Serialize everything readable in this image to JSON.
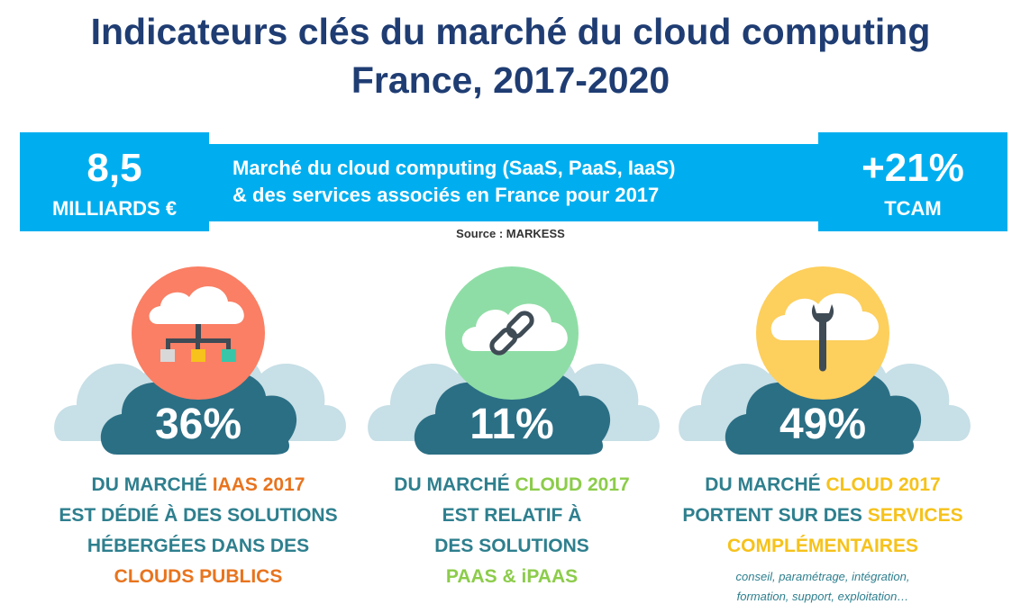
{
  "title": {
    "line1": "Indicateurs clés du marché du cloud computing",
    "line2": "France, 2017-2020"
  },
  "banner": {
    "left_value": "8,5",
    "left_unit": "MILLIARDS €",
    "center_line1": "Marché du cloud computing (SaaS, PaaS, IaaS)",
    "center_line2": "& des services associés en France pour 2017",
    "right_value": "+21%",
    "right_unit": "TCAM"
  },
  "source": "Source : MARKESS",
  "colors": {
    "navy": "#1f3d73",
    "banner_blue": "#00aeef",
    "teal": "#2e7f8e",
    "cloud_light": "#c7dfe6",
    "cloud_dark": "#2b6f85",
    "orange": "#e8741e",
    "green": "#8ccc4a",
    "yellow": "#f6c21b"
  },
  "cards": [
    {
      "icon": "network-cloud-icon",
      "percent": "36%",
      "line1_a": "DU MARCHÉ ",
      "line1_b": "IAAS 2017",
      "line2": "EST DÉDIÉ À DES SOLUTIONS",
      "line3": "HÉBERGÉES DANS DES",
      "line4": "CLOUDS PUBLICS"
    },
    {
      "icon": "link-cloud-icon",
      "percent": "11%",
      "line1_a": "DU MARCHÉ ",
      "line1_b": "CLOUD 2017",
      "line2": "EST RELATIF À",
      "line3": "DES SOLUTIONS",
      "line4": "PAAS & iPAAS"
    },
    {
      "icon": "wrench-cloud-icon",
      "percent": "49%",
      "line1_a": "DU MARCHÉ ",
      "line1_b": "CLOUD 2017",
      "line2_a": "PORTENT SUR DES ",
      "line2_b": "SERVICES",
      "line3": "COMPLÉMENTAIRES",
      "note1": "conseil, paramétrage, intégration,",
      "note2": "formation, support, exploitation…"
    }
  ]
}
